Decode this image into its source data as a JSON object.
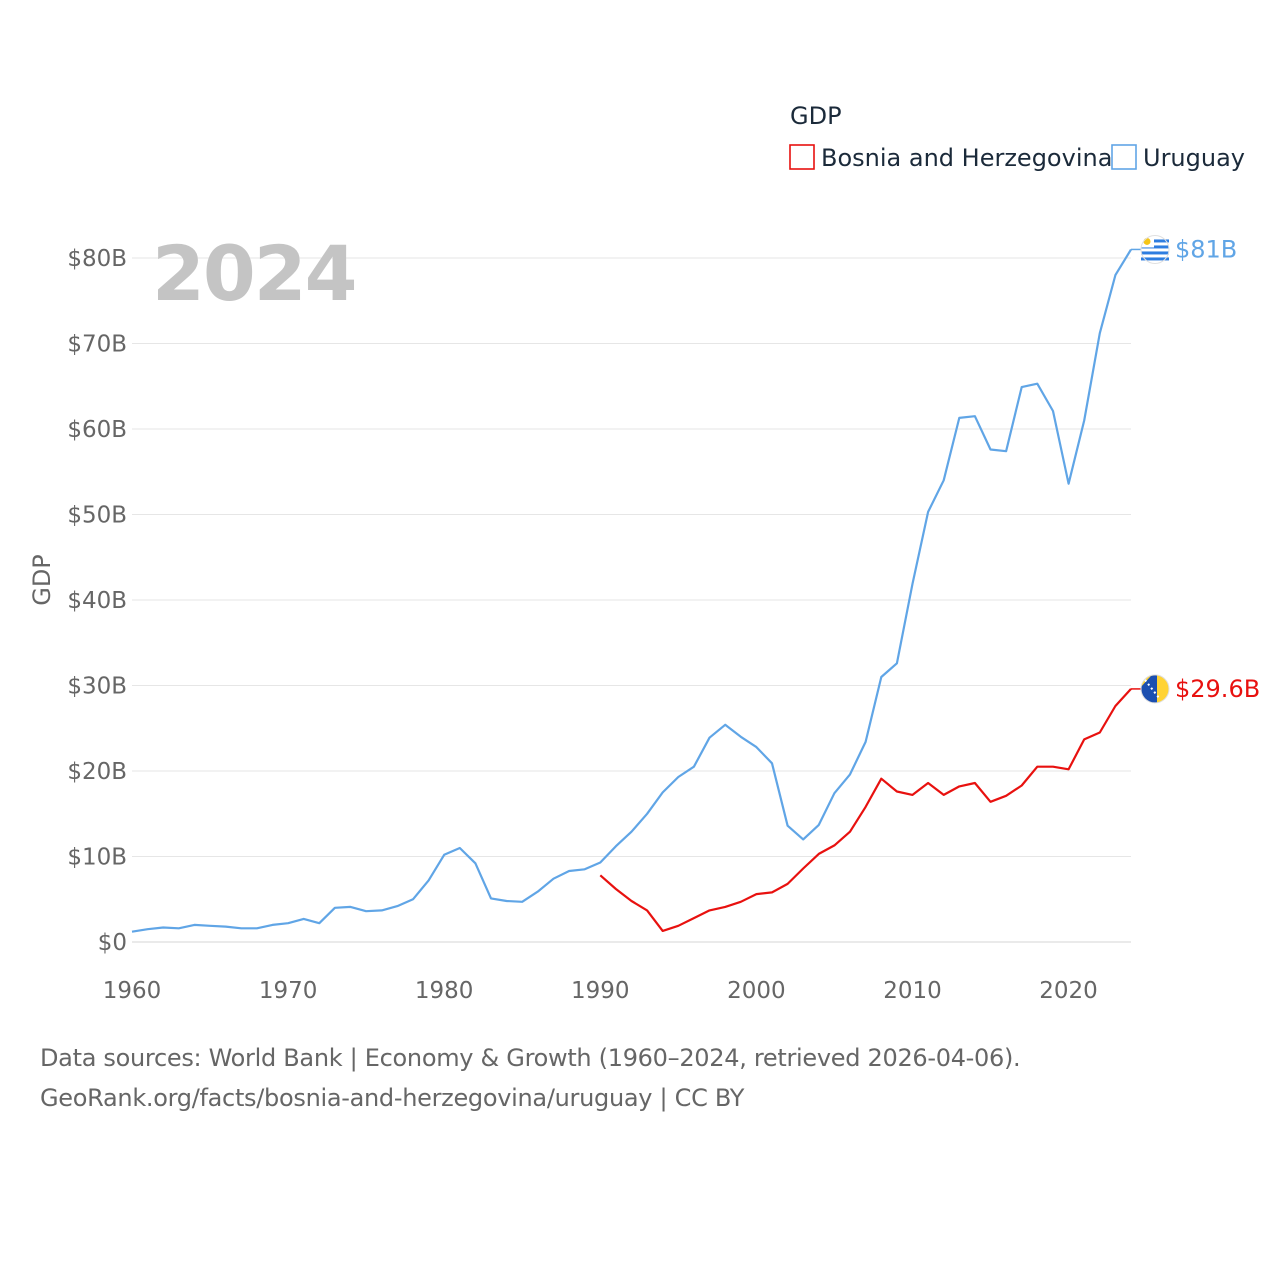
{
  "chart_data": {
    "type": "line",
    "legend_title": "GDP",
    "year_label": "2024",
    "ylabel": "GDP",
    "xlim": [
      1960,
      2024
    ],
    "ylim": [
      0,
      80
    ],
    "x_ticks": [
      1960,
      1970,
      1980,
      1990,
      2000,
      2010,
      2020
    ],
    "x_tick_labels": [
      "1960",
      "1970",
      "1980",
      "1990",
      "2000",
      "2010",
      "2020"
    ],
    "y_ticks": [
      0,
      10,
      20,
      30,
      40,
      50,
      60,
      70,
      80
    ],
    "y_tick_labels": [
      "$0",
      "$10B",
      "$20B",
      "$30B",
      "$40B",
      "$50B",
      "$60B",
      "$70B",
      "$80B"
    ],
    "series": [
      {
        "name": "Bosnia and Herzegovina",
        "color": "#e8110f",
        "end_label": "$29.6B",
        "flag": "bosnia-flag-icon",
        "x": [
          1990,
          1991,
          1992,
          1993,
          1994,
          1995,
          1996,
          1997,
          1998,
          1999,
          2000,
          2001,
          2002,
          2003,
          2004,
          2005,
          2006,
          2007,
          2008,
          2009,
          2010,
          2011,
          2012,
          2013,
          2014,
          2015,
          2016,
          2017,
          2018,
          2019,
          2020,
          2021,
          2022,
          2023,
          2024
        ],
        "values": [
          7.8,
          6.2,
          4.8,
          3.7,
          1.3,
          1.9,
          2.8,
          3.7,
          4.1,
          4.7,
          5.6,
          5.8,
          6.8,
          8.6,
          10.3,
          11.3,
          12.9,
          15.8,
          19.1,
          17.6,
          17.2,
          18.6,
          17.2,
          18.2,
          18.6,
          16.4,
          17.1,
          18.3,
          20.5,
          20.5,
          20.2,
          23.7,
          24.5,
          27.6,
          29.6
        ]
      },
      {
        "name": "Uruguay",
        "color": "#60a5e6",
        "end_label": "$81B",
        "flag": "uruguay-flag-icon",
        "x": [
          1960,
          1961,
          1962,
          1963,
          1964,
          1965,
          1966,
          1967,
          1968,
          1969,
          1970,
          1971,
          1972,
          1973,
          1974,
          1975,
          1976,
          1977,
          1978,
          1979,
          1980,
          1981,
          1982,
          1983,
          1984,
          1985,
          1986,
          1987,
          1988,
          1989,
          1990,
          1991,
          1992,
          1993,
          1994,
          1995,
          1996,
          1997,
          1998,
          1999,
          2000,
          2001,
          2002,
          2003,
          2004,
          2005,
          2006,
          2007,
          2008,
          2009,
          2010,
          2011,
          2012,
          2013,
          2014,
          2015,
          2016,
          2017,
          2018,
          2019,
          2020,
          2021,
          2022,
          2023,
          2024
        ],
        "values": [
          1.2,
          1.5,
          1.7,
          1.6,
          2.0,
          1.9,
          1.8,
          1.6,
          1.6,
          2.0,
          2.2,
          2.7,
          2.2,
          4.0,
          4.1,
          3.6,
          3.7,
          4.2,
          5.0,
          7.2,
          10.2,
          11.0,
          9.2,
          5.1,
          4.8,
          4.7,
          5.9,
          7.4,
          8.3,
          8.5,
          9.3,
          11.2,
          12.9,
          15.0,
          17.5,
          19.3,
          20.5,
          23.9,
          25.4,
          24.0,
          22.8,
          20.9,
          13.6,
          12.0,
          13.7,
          17.4,
          19.6,
          23.4,
          31.0,
          32.6,
          41.9,
          50.3,
          54.0,
          61.3,
          61.5,
          57.6,
          57.4,
          64.9,
          65.3,
          62.1,
          53.6,
          61.0,
          71.2,
          78.0,
          81.0
        ]
      }
    ]
  },
  "sources": {
    "line1": "Data sources: World Bank | Economy & Growth (1960–2024, retrieved 2026-04-06).",
    "line2": "GeoRank.org/facts/bosnia-and-herzegovina/uruguay | CC BY"
  }
}
